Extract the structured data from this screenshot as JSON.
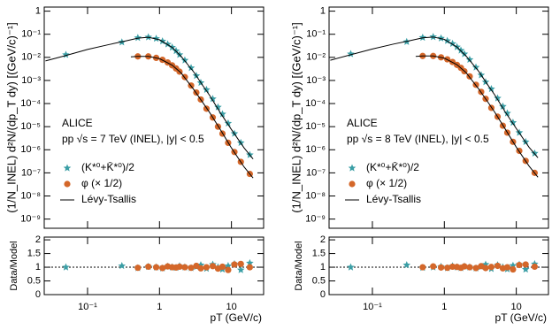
{
  "chart_data": [
    {
      "type": "scatter",
      "log_x": true,
      "log_y": true,
      "ylabel": "(1/N_INEL) d²N/(dp_T dy) [(GeV/c)⁻¹]",
      "annotations": [
        "ALICE",
        "pp √s = 7 TeV (INEL), |y| < 0.5"
      ],
      "xlim": [
        0.025,
        28
      ],
      "ylim": [
        4e-10,
        1.5
      ],
      "yticks": [
        1,
        {
          "value": 0.1,
          "label": "10⁻¹"
        },
        {
          "value": 0.01,
          "label": "10⁻²"
        },
        {
          "value": 0.001,
          "label": "10⁻³"
        },
        {
          "value": 0.0001,
          "label": "10⁻⁴"
        },
        {
          "value": 1e-05,
          "label": "10⁻⁵"
        },
        {
          "value": 1e-06,
          "label": "10⁻⁶"
        },
        {
          "value": 1e-07,
          "label": "10⁻⁷"
        },
        {
          "value": 1e-08,
          "label": "10⁻⁸"
        },
        {
          "value": 1e-09,
          "label": "10⁻⁹"
        }
      ],
      "series": [
        {
          "name": "(K*⁰+K̄*⁰)/2",
          "marker": "star",
          "color": "#3a9ea5",
          "x": [
            0.05,
            0.3,
            0.5,
            0.7,
            0.9,
            1.1,
            1.3,
            1.5,
            1.7,
            1.9,
            2.25,
            2.75,
            3.25,
            3.75,
            4.5,
            5.5,
            6.5,
            7.5,
            9,
            11,
            13.5,
            18
          ],
          "values": [
            0.013,
            0.045,
            0.07,
            0.075,
            0.065,
            0.05,
            0.037,
            0.027,
            0.019,
            0.013,
            0.0075,
            0.0035,
            0.0016,
            0.0008,
            0.0004,
            0.00016,
            7e-05,
            3.5e-05,
            1.4e-05,
            5e-06,
            2e-06,
            6e-07
          ]
        },
        {
          "name": "φ (× 1/2)",
          "marker": "circle",
          "color": "#d4672a",
          "x": [
            0.5,
            0.7,
            0.9,
            1.1,
            1.3,
            1.5,
            1.7,
            1.9,
            2.25,
            2.75,
            3.25,
            3.75,
            4.5,
            5.5,
            6.5,
            7.5,
            9,
            11,
            13.5,
            18
          ],
          "values": [
            0.011,
            0.011,
            0.0095,
            0.0078,
            0.006,
            0.0045,
            0.0033,
            0.0024,
            0.0014,
            0.0006,
            0.0003,
            0.00015,
            6e-05,
            2.5e-05,
            1e-05,
            5e-06,
            2e-06,
            8e-07,
            3e-07,
            9e-08
          ]
        },
        {
          "name": "Lévy-Tsallis",
          "marker": "line",
          "color": "#000000",
          "x": [
            0.026,
            0.05,
            0.1,
            0.2,
            0.3,
            0.5,
            0.7,
            1,
            1.5,
            2,
            3,
            4,
            5,
            7,
            10,
            15,
            20
          ],
          "values": [
            0.007,
            0.012,
            0.022,
            0.036,
            0.047,
            0.068,
            0.074,
            0.058,
            0.027,
            0.011,
            0.0023,
            0.0006,
            0.00022,
            4e-05,
            7.5e-06,
            1.2e-06,
            4e-07
          ]
        },
        {
          "marker": "line",
          "color": "#000000",
          "x": [
            0.4,
            0.5,
            0.7,
            1,
            1.5,
            2,
            3,
            4,
            5,
            7,
            10,
            15,
            20
          ],
          "values": [
            0.0105,
            0.011,
            0.011,
            0.0088,
            0.0046,
            0.0021,
            0.0004,
            0.00011,
            4e-05,
            7.5e-06,
            1.2e-06,
            1.8e-07,
            6e-08
          ]
        }
      ]
    },
    {
      "type": "scatter",
      "log_x": true,
      "ylabel": "Data/Model",
      "xlabel": "pT (GeV/c)",
      "xlim": [
        0.025,
        28
      ],
      "ylim": [
        0,
        2.1
      ],
      "ref_line": 1,
      "xticks": [
        {
          "value": 0.1,
          "label": "10⁻¹"
        },
        1,
        10
      ],
      "yticks": [
        0,
        0.5,
        1,
        1.5,
        2
      ],
      "series": [
        {
          "marker": "star",
          "color": "#3a9ea5",
          "x": [
            0.05,
            0.3,
            0.5,
            0.7,
            0.9,
            1.1,
            1.3,
            1.5,
            1.7,
            1.9,
            2.25,
            2.75,
            3.25,
            3.75,
            4.5,
            5.5,
            6.5,
            7.5,
            9,
            11,
            13.5,
            18
          ],
          "values": [
            1.0,
            1.05,
            0.97,
            1.02,
            1.0,
            0.96,
            1.03,
            1.0,
            0.98,
            1.04,
            1.0,
            0.97,
            1.02,
            1.08,
            0.95,
            1.1,
            1.0,
            0.92,
            1.05,
            1.12,
            0.9,
            1.15
          ]
        },
        {
          "marker": "circle",
          "color": "#d4672a",
          "x": [
            0.5,
            0.7,
            0.9,
            1.1,
            1.3,
            1.5,
            1.7,
            1.9,
            2.25,
            2.75,
            3.25,
            3.75,
            4.5,
            5.5,
            6.5,
            7.5,
            9,
            11,
            13.5,
            18
          ],
          "values": [
            0.98,
            1.02,
            1.0,
            0.97,
            1.03,
            1.0,
            0.99,
            1.02,
            1.0,
            0.98,
            1.05,
            0.96,
            1.0,
            1.04,
            0.95,
            1.02,
            0.9,
            1.1,
            1.12,
            1.0
          ]
        }
      ]
    },
    {
      "type": "scatter",
      "log_x": true,
      "log_y": true,
      "ylabel": "(1/N_INEL) d²N/(dp_T dy) [(GeV/c)⁻¹]",
      "annotations": [
        "ALICE",
        "pp √s = 8 TeV (INEL), |y| < 0.5"
      ],
      "xlim": [
        0.025,
        28
      ],
      "ylim": [
        4e-10,
        1.5
      ],
      "yticks": [
        1,
        {
          "value": 0.1,
          "label": "10⁻¹"
        },
        {
          "value": 0.01,
          "label": "10⁻²"
        },
        {
          "value": 0.001,
          "label": "10⁻³"
        },
        {
          "value": 0.0001,
          "label": "10⁻⁴"
        },
        {
          "value": 1e-05,
          "label": "10⁻⁵"
        },
        {
          "value": 1e-06,
          "label": "10⁻⁶"
        },
        {
          "value": 1e-07,
          "label": "10⁻⁷"
        },
        {
          "value": 1e-08,
          "label": "10⁻⁸"
        },
        {
          "value": 1e-09,
          "label": "10⁻⁹"
        }
      ],
      "series": [
        {
          "name": "(K*⁰+K̄*⁰)/2",
          "marker": "star",
          "color": "#3a9ea5",
          "x": [
            0.05,
            0.3,
            0.5,
            0.7,
            0.9,
            1.1,
            1.3,
            1.5,
            1.7,
            1.9,
            2.25,
            2.75,
            3.25,
            3.75,
            4.5,
            5.5,
            6.5,
            7.5,
            9,
            11,
            13.5,
            18
          ],
          "values": [
            0.014,
            0.047,
            0.072,
            0.077,
            0.067,
            0.052,
            0.039,
            0.028,
            0.02,
            0.014,
            0.008,
            0.0037,
            0.0017,
            0.00085,
            0.00043,
            0.00017,
            7.5e-05,
            3.8e-05,
            1.5e-05,
            5.5e-06,
            2.2e-06,
            7e-07
          ]
        },
        {
          "name": "φ (× 1/2)",
          "marker": "circle",
          "color": "#d4672a",
          "x": [
            0.5,
            0.7,
            0.9,
            1.1,
            1.3,
            1.5,
            1.7,
            1.9,
            2.25,
            2.75,
            3.25,
            3.75,
            4.5,
            5.5,
            6.5,
            7.5,
            9,
            11,
            13.5,
            18
          ],
          "values": [
            0.0115,
            0.0115,
            0.01,
            0.0082,
            0.0063,
            0.0047,
            0.0035,
            0.0025,
            0.0015,
            0.00065,
            0.00032,
            0.00016,
            6.5e-05,
            2.7e-05,
            1.1e-05,
            5.5e-06,
            2.2e-06,
            9e-07,
            3.3e-07,
            1e-07
          ]
        },
        {
          "name": "Lévy-Tsallis",
          "marker": "line",
          "color": "#000000",
          "x": [
            0.026,
            0.05,
            0.1,
            0.2,
            0.3,
            0.5,
            0.7,
            1,
            1.5,
            2,
            3,
            4,
            5,
            7,
            10,
            15,
            20
          ],
          "values": [
            0.0075,
            0.013,
            0.023,
            0.038,
            0.049,
            0.07,
            0.076,
            0.06,
            0.028,
            0.0115,
            0.0025,
            0.00065,
            0.00024,
            4.4e-05,
            8.3e-06,
            1.3e-06,
            4.5e-07
          ]
        },
        {
          "marker": "line",
          "color": "#000000",
          "x": [
            0.4,
            0.5,
            0.7,
            1,
            1.5,
            2,
            3,
            4,
            5,
            7,
            10,
            15,
            20
          ],
          "values": [
            0.011,
            0.0115,
            0.0115,
            0.0092,
            0.0048,
            0.0022,
            0.00043,
            0.00012,
            4.3e-05,
            8e-06,
            1.3e-06,
            2e-07,
            6.5e-08
          ]
        }
      ]
    },
    {
      "type": "scatter",
      "log_x": true,
      "ylabel": "Data/Model",
      "xlabel": "pT (GeV/c)",
      "xlim": [
        0.025,
        28
      ],
      "ylim": [
        0,
        2.1
      ],
      "ref_line": 1,
      "xticks": [
        {
          "value": 0.1,
          "label": "10⁻¹"
        },
        1,
        10
      ],
      "yticks": [
        0,
        0.5,
        1,
        1.5,
        2
      ],
      "series": [
        {
          "marker": "star",
          "color": "#3a9ea5",
          "x": [
            0.05,
            0.3,
            0.5,
            0.7,
            0.9,
            1.1,
            1.3,
            1.5,
            1.7,
            1.9,
            2.25,
            2.75,
            3.25,
            3.75,
            4.5,
            5.5,
            6.5,
            7.5,
            9,
            11,
            13.5,
            18
          ],
          "values": [
            1.0,
            1.08,
            0.98,
            1.0,
            1.02,
            0.97,
            1.04,
            1.0,
            0.97,
            1.03,
            1.0,
            0.96,
            1.02,
            1.1,
            0.94,
            1.08,
            1.0,
            0.93,
            1.06,
            1.1,
            0.92,
            1.12
          ]
        },
        {
          "marker": "circle",
          "color": "#d4672a",
          "x": [
            0.5,
            0.7,
            0.9,
            1.1,
            1.3,
            1.5,
            1.7,
            1.9,
            2.25,
            2.75,
            3.25,
            3.75,
            4.5,
            5.5,
            6.5,
            7.5,
            9,
            11,
            13.5,
            18
          ],
          "values": [
            1.0,
            1.03,
            0.99,
            0.98,
            1.02,
            1.01,
            0.98,
            1.03,
            1.0,
            0.97,
            1.04,
            0.97,
            1.01,
            1.05,
            0.96,
            1.0,
            0.92,
            1.08,
            1.1,
            1.02
          ]
        }
      ]
    }
  ]
}
